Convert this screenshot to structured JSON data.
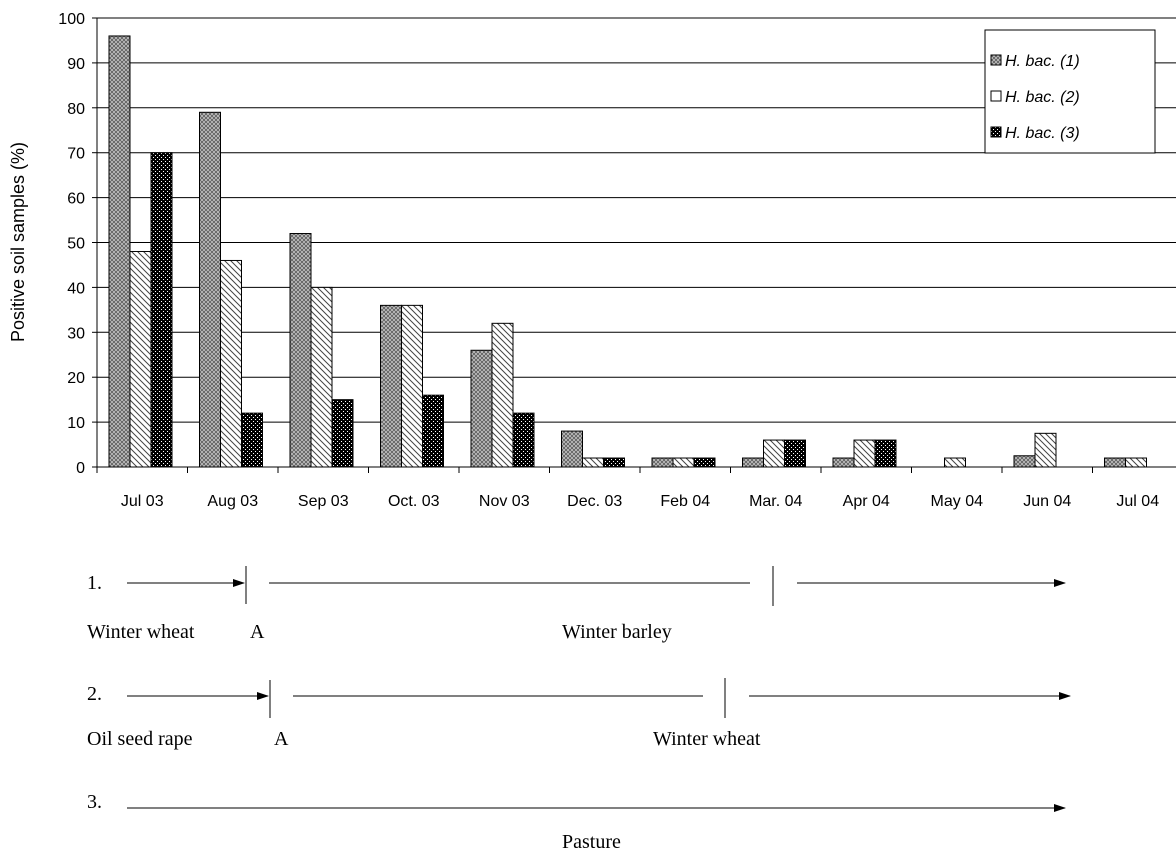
{
  "chart_data": {
    "type": "bar",
    "ylabel": "Positive soil samples (%)",
    "ylim": [
      0,
      100
    ],
    "yticks": [
      "0",
      "10",
      "20",
      "30",
      "40",
      "50",
      "60",
      "70",
      "80",
      "90",
      "100"
    ],
    "grid": true,
    "legend_position": "top-right",
    "categories": [
      "Jul 03",
      "Aug 03",
      "Sep 03",
      "Oct. 03",
      "Nov 03",
      "Dec. 03",
      "Feb 04",
      "Mar. 04",
      "Apr 04",
      "May 04",
      "Jun 04",
      "Jul 04"
    ],
    "series": [
      {
        "name": "H. bac. (1)",
        "pattern": "crosshatch-gray",
        "values": [
          96,
          79,
          52,
          36,
          26,
          8,
          2,
          2,
          2,
          null,
          2.5,
          2
        ]
      },
      {
        "name": "H. bac. (2)",
        "pattern": "diagonal-white",
        "values": [
          48,
          46,
          40,
          36,
          32,
          2,
          2,
          6,
          6,
          2,
          7.5,
          2
        ]
      },
      {
        "name": "H. bac. (3)",
        "pattern": "dotted-black",
        "values": [
          70,
          12,
          15,
          16,
          12,
          2,
          2,
          6,
          6,
          null,
          null,
          null
        ]
      }
    ]
  },
  "timelines": [
    {
      "number": "1.",
      "labels": [
        {
          "text": "Winter wheat"
        },
        {
          "text": "A"
        },
        {
          "text": "Winter barley"
        }
      ]
    },
    {
      "number": "2.",
      "labels": [
        {
          "text": "Oil seed rape"
        },
        {
          "text": "A"
        },
        {
          "text": "Winter wheat"
        }
      ]
    },
    {
      "number": "3.",
      "labels": [
        {
          "text": "Pasture"
        }
      ]
    }
  ]
}
